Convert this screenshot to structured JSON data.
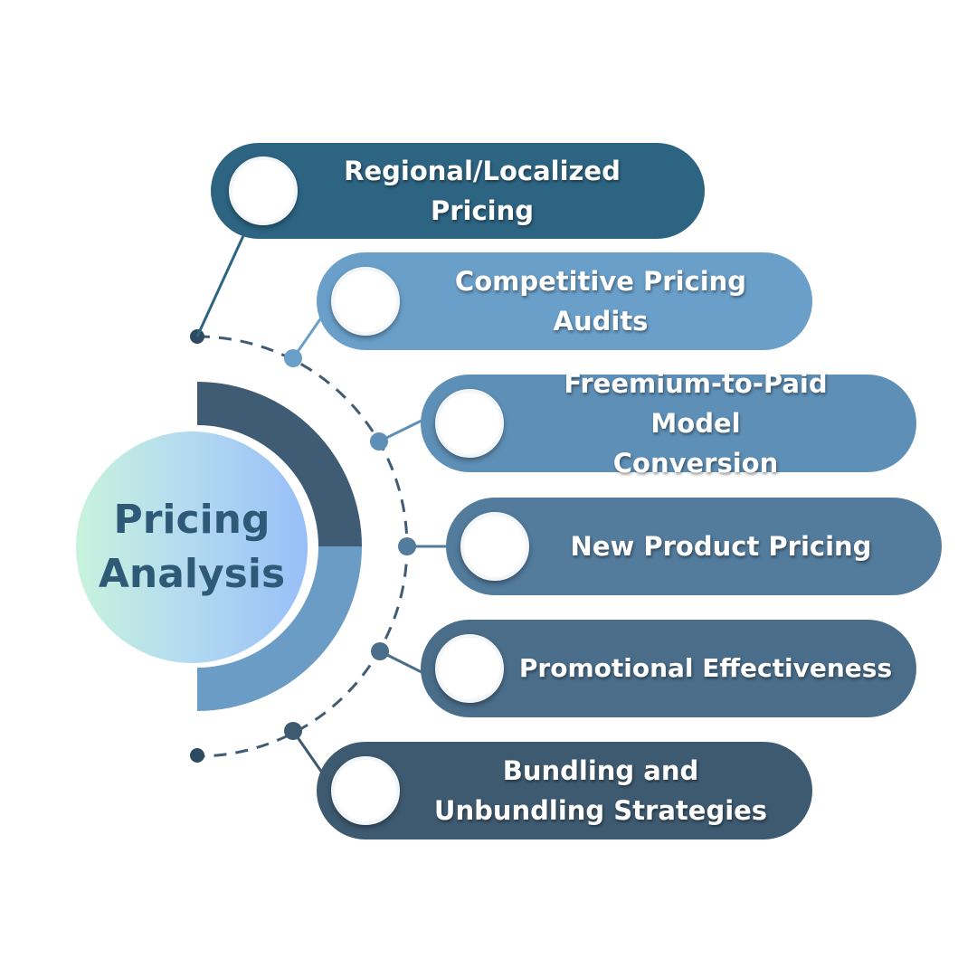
{
  "center": {
    "title": "Pricing\nAnalysis"
  },
  "colors": {
    "arc_top": "#3f5c74",
    "arc_bottom": "#6a9cc6",
    "dashed_line": "#3f5c74"
  },
  "items": [
    {
      "label": "Regional/Localized\nPricing",
      "color": "#2d6482"
    },
    {
      "label": "Competitive Pricing Audits",
      "color": "#6a9fc9"
    },
    {
      "label": "Freemium-to-Paid Model\nConversion",
      "color": "#5e8fb6"
    },
    {
      "label": "New Product Pricing",
      "color": "#527b9c"
    },
    {
      "label": "Promotional Effectiveness",
      "color": "#4a6d89"
    },
    {
      "label": "Bundling and\nUnbundling Strategies",
      "color": "#3e5a70"
    }
  ]
}
